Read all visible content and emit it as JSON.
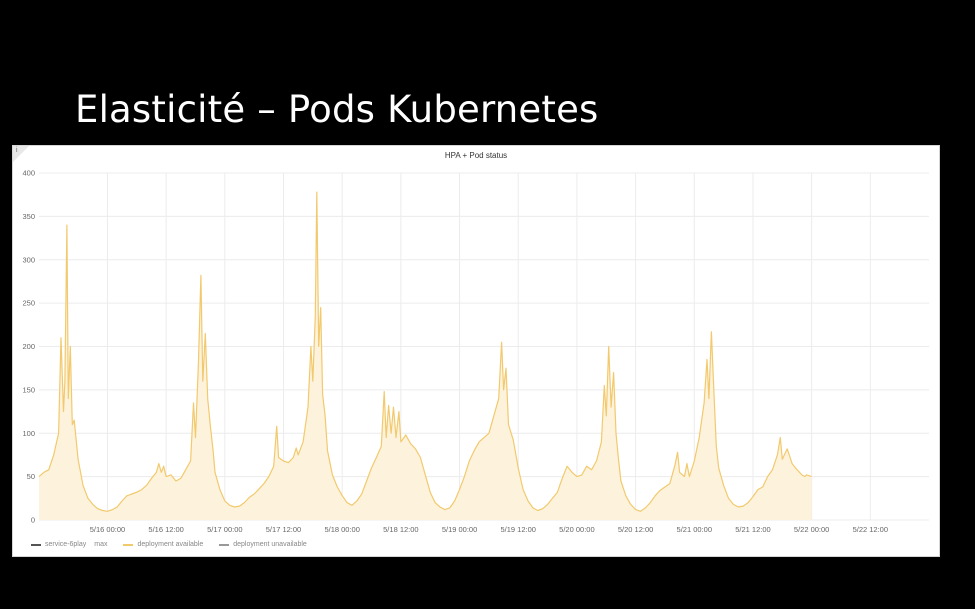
{
  "slide": {
    "title": "Elasticité – Pods Kubernetes"
  },
  "panel": {
    "title": "HPA + Pod status",
    "info_icon": "info-icon"
  },
  "legend": {
    "items": [
      {
        "label_start": "service-6play",
        "label_smudge": "",
        "label_end": "max",
        "color": "#555555"
      },
      {
        "label_start": "deployment available",
        "label_smudge": "",
        "label_end": "",
        "color": "#f2c96d"
      },
      {
        "label_start": "deployment unavailable",
        "label_smudge": "",
        "label_end": "",
        "color": "#999999"
      }
    ]
  },
  "colors": {
    "series_line": "#f2c96d",
    "series_fill": "#fdf3dd",
    "grid": "#ececec"
  },
  "chart_data": {
    "type": "area",
    "title": "HPA + Pod status",
    "xlabel": "",
    "ylabel": "",
    "ylim": [
      0,
      400
    ],
    "y_ticks": [
      0,
      50,
      100,
      150,
      200,
      250,
      300,
      350,
      400
    ],
    "y_tick_labels": [
      "0",
      "50",
      "100",
      "150",
      "200",
      "250",
      "300",
      "350",
      "400"
    ],
    "x_range_hours": [
      -14,
      168
    ],
    "x_ticks": [
      {
        "hour": 0,
        "label": "5/16 00:00"
      },
      {
        "hour": 12,
        "label": "5/16 12:00"
      },
      {
        "hour": 24,
        "label": "5/17 00:00"
      },
      {
        "hour": 36,
        "label": "5/17 12:00"
      },
      {
        "hour": 48,
        "label": "5/18 00:00"
      },
      {
        "hour": 60,
        "label": "5/18 12:00"
      },
      {
        "hour": 72,
        "label": "5/19 00:00"
      },
      {
        "hour": 84,
        "label": "5/19 12:00"
      },
      {
        "hour": 96,
        "label": "5/20 00:00"
      },
      {
        "hour": 108,
        "label": "5/20 12:00"
      },
      {
        "hour": 120,
        "label": "5/21 00:00"
      },
      {
        "hour": 132,
        "label": "5/21 12:00"
      },
      {
        "hour": 144,
        "label": "5/22 00:00"
      },
      {
        "hour": 156,
        "label": "5/22 12:00"
      }
    ],
    "grid": true,
    "legend_position": "bottom-left",
    "series": [
      {
        "name": "deployment available",
        "points": [
          [
            -14,
            50
          ],
          [
            -13,
            55
          ],
          [
            -12,
            58
          ],
          [
            -11,
            75
          ],
          [
            -10,
            100
          ],
          [
            -9.5,
            210
          ],
          [
            -9,
            125
          ],
          [
            -8.7,
            160
          ],
          [
            -8.3,
            340
          ],
          [
            -8,
            140
          ],
          [
            -7.6,
            200
          ],
          [
            -7.2,
            110
          ],
          [
            -6.8,
            115
          ],
          [
            -6,
            70
          ],
          [
            -5,
            40
          ],
          [
            -4,
            25
          ],
          [
            -3,
            18
          ],
          [
            -2,
            13
          ],
          [
            -1,
            11
          ],
          [
            0,
            10
          ],
          [
            1,
            12
          ],
          [
            2,
            15
          ],
          [
            3,
            22
          ],
          [
            4,
            28
          ],
          [
            5,
            30
          ],
          [
            6,
            32
          ],
          [
            7,
            35
          ],
          [
            8,
            40
          ],
          [
            9,
            48
          ],
          [
            10,
            55
          ],
          [
            10.5,
            65
          ],
          [
            11,
            55
          ],
          [
            11.5,
            62
          ],
          [
            12,
            50
          ],
          [
            13,
            52
          ],
          [
            14,
            45
          ],
          [
            15,
            48
          ],
          [
            16,
            58
          ],
          [
            17,
            68
          ],
          [
            17.6,
            135
          ],
          [
            18,
            95
          ],
          [
            18.6,
            180
          ],
          [
            19.1,
            282
          ],
          [
            19.5,
            160
          ],
          [
            20,
            215
          ],
          [
            20.5,
            140
          ],
          [
            21,
            110
          ],
          [
            21.6,
            80
          ],
          [
            22,
            55
          ],
          [
            23,
            35
          ],
          [
            24,
            22
          ],
          [
            25,
            17
          ],
          [
            26,
            15
          ],
          [
            27,
            16
          ],
          [
            28,
            20
          ],
          [
            29,
            26
          ],
          [
            30,
            30
          ],
          [
            31,
            36
          ],
          [
            32,
            42
          ],
          [
            33,
            50
          ],
          [
            34,
            62
          ],
          [
            34.6,
            108
          ],
          [
            35,
            72
          ],
          [
            36,
            68
          ],
          [
            37,
            66
          ],
          [
            38,
            72
          ],
          [
            38.6,
            83
          ],
          [
            39,
            75
          ],
          [
            40,
            90
          ],
          [
            41,
            130
          ],
          [
            41.6,
            200
          ],
          [
            42,
            160
          ],
          [
            42.5,
            235
          ],
          [
            42.8,
            378
          ],
          [
            43.2,
            200
          ],
          [
            43.6,
            245
          ],
          [
            44,
            145
          ],
          [
            44.5,
            120
          ],
          [
            45,
            80
          ],
          [
            46,
            52
          ],
          [
            47,
            38
          ],
          [
            48,
            28
          ],
          [
            49,
            20
          ],
          [
            50,
            17
          ],
          [
            51,
            22
          ],
          [
            52,
            30
          ],
          [
            53,
            45
          ],
          [
            54,
            60
          ],
          [
            55,
            72
          ],
          [
            56,
            85
          ],
          [
            56.6,
            148
          ],
          [
            57,
            95
          ],
          [
            57.5,
            132
          ],
          [
            58,
            100
          ],
          [
            58.5,
            130
          ],
          [
            59,
            95
          ],
          [
            59.6,
            125
          ],
          [
            60,
            90
          ],
          [
            61,
            98
          ],
          [
            62,
            88
          ],
          [
            63,
            82
          ],
          [
            64,
            72
          ],
          [
            65,
            52
          ],
          [
            66,
            32
          ],
          [
            67,
            20
          ],
          [
            68,
            15
          ],
          [
            69,
            12
          ],
          [
            70,
            14
          ],
          [
            71,
            22
          ],
          [
            72,
            35
          ],
          [
            73,
            50
          ],
          [
            74,
            68
          ],
          [
            75,
            80
          ],
          [
            76,
            90
          ],
          [
            77,
            95
          ],
          [
            78,
            100
          ],
          [
            79,
            120
          ],
          [
            80,
            140
          ],
          [
            80.6,
            205
          ],
          [
            81,
            150
          ],
          [
            81.5,
            175
          ],
          [
            82,
            110
          ],
          [
            83,
            92
          ],
          [
            84,
            60
          ],
          [
            85,
            35
          ],
          [
            86,
            22
          ],
          [
            87,
            14
          ],
          [
            88,
            11
          ],
          [
            89,
            13
          ],
          [
            90,
            18
          ],
          [
            91,
            25
          ],
          [
            92,
            32
          ],
          [
            93,
            48
          ],
          [
            94,
            62
          ],
          [
            95,
            55
          ],
          [
            96,
            50
          ],
          [
            97,
            52
          ],
          [
            98,
            62
          ],
          [
            99,
            58
          ],
          [
            100,
            68
          ],
          [
            101,
            90
          ],
          [
            101.6,
            155
          ],
          [
            102,
            120
          ],
          [
            102.5,
            200
          ],
          [
            103,
            130
          ],
          [
            103.5,
            170
          ],
          [
            104,
            100
          ],
          [
            104.5,
            70
          ],
          [
            105,
            45
          ],
          [
            106,
            28
          ],
          [
            107,
            18
          ],
          [
            108,
            12
          ],
          [
            109,
            10
          ],
          [
            110,
            14
          ],
          [
            111,
            20
          ],
          [
            112,
            28
          ],
          [
            113,
            34
          ],
          [
            114,
            38
          ],
          [
            115,
            42
          ],
          [
            116,
            62
          ],
          [
            116.6,
            78
          ],
          [
            117,
            55
          ],
          [
            118,
            50
          ],
          [
            118.5,
            65
          ],
          [
            119,
            50
          ],
          [
            120,
            68
          ],
          [
            121,
            95
          ],
          [
            122,
            135
          ],
          [
            122.6,
            185
          ],
          [
            123,
            140
          ],
          [
            123.5,
            217
          ],
          [
            124,
            150
          ],
          [
            124.5,
            85
          ],
          [
            125,
            60
          ],
          [
            126,
            40
          ],
          [
            127,
            25
          ],
          [
            128,
            18
          ],
          [
            129,
            15
          ],
          [
            130,
            16
          ],
          [
            131,
            20
          ],
          [
            132,
            27
          ],
          [
            133,
            35
          ],
          [
            134,
            38
          ],
          [
            135,
            50
          ],
          [
            136,
            58
          ],
          [
            137,
            75
          ],
          [
            137.6,
            95
          ],
          [
            138,
            70
          ],
          [
            139,
            82
          ],
          [
            140,
            65
          ],
          [
            141,
            58
          ],
          [
            142,
            52
          ],
          [
            142.6,
            50
          ],
          [
            143,
            52
          ],
          [
            144,
            50
          ]
        ]
      }
    ]
  }
}
